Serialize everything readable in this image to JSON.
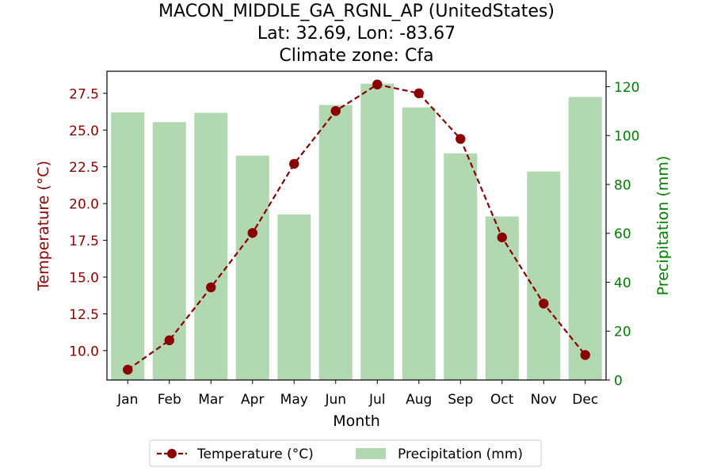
{
  "chart_data": {
    "type": "bar",
    "title_lines": [
      "MACON_MIDDLE_GA_RGNL_AP (UnitedStates)",
      "Lat: 32.69, Lon: -83.67",
      "Climate zone: Cfa"
    ],
    "xlabel": "Month",
    "ylabel_left": "Temperature (°C)",
    "ylabel_right": "Precipitation (mm)",
    "categories": [
      "Jan",
      "Feb",
      "Mar",
      "Apr",
      "May",
      "Jun",
      "Jul",
      "Aug",
      "Sep",
      "Oct",
      "Nov",
      "Dec"
    ],
    "series": [
      {
        "name": "Temperature (°C)",
        "kind": "line",
        "axis": "left",
        "color": "#8b0000",
        "values": [
          8.7,
          10.7,
          14.3,
          18.0,
          22.7,
          26.3,
          28.1,
          27.5,
          24.4,
          17.7,
          13.2,
          9.7
        ]
      },
      {
        "name": "Precipitation (mm)",
        "kind": "bar",
        "axis": "right",
        "color": "#b2d8b2",
        "values": [
          109.5,
          105.5,
          109.3,
          91.8,
          67.7,
          112.5,
          121.2,
          111.5,
          92.7,
          66.9,
          85.3,
          115.8
        ]
      }
    ],
    "ylim_left": [
      8.0,
      29.0
    ],
    "ylim_right": [
      0,
      126.3
    ],
    "yticks_left": [
      "10.0",
      "12.5",
      "15.0",
      "17.5",
      "20.0",
      "22.5",
      "25.0",
      "27.5"
    ],
    "yticks_right": [
      "0",
      "20",
      "40",
      "60",
      "80",
      "100",
      "120"
    ],
    "left_axis_color": "#8b0000",
    "right_axis_color": "#008000",
    "legend_position": "bottom-center",
    "grid": false
  }
}
